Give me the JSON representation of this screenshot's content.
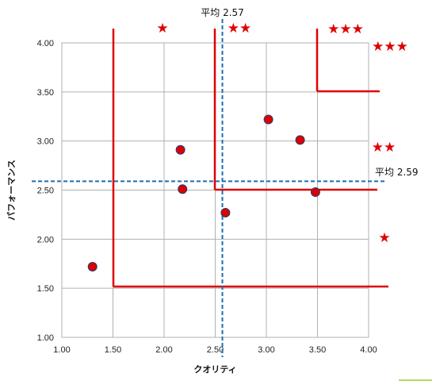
{
  "chart_data": {
    "type": "scatter",
    "xlabel": "クオリティ",
    "ylabel": "パフォーマンス",
    "xlim": [
      1.0,
      4.0
    ],
    "ylim": [
      1.0,
      4.0
    ],
    "x_ticks": [
      "1.00",
      "1.50",
      "2.00",
      "2.50",
      "3.00",
      "3.50",
      "4.00"
    ],
    "y_ticks": [
      "1.00",
      "1.50",
      "2.00",
      "2.50",
      "3.00",
      "3.50",
      "4.00"
    ],
    "grid": true,
    "points": [
      {
        "x": 1.3,
        "y": 1.72
      },
      {
        "x": 2.16,
        "y": 2.91
      },
      {
        "x": 2.18,
        "y": 2.51
      },
      {
        "x": 2.6,
        "y": 2.27
      },
      {
        "x": 3.02,
        "y": 3.22
      },
      {
        "x": 3.33,
        "y": 3.01
      },
      {
        "x": 3.48,
        "y": 2.48
      }
    ],
    "point_color": "#dd0000",
    "point_edge_color": "#1f3f7f",
    "avg_x": {
      "value": 2.57,
      "label": "平均 2.57"
    },
    "avg_y": {
      "value": 2.59,
      "label": "平均 2.59"
    },
    "avg_line_color": "#1a6fb0",
    "boundary_color": "#e00000",
    "star_color": "#e00000",
    "star_labels": {
      "top_low_quality": "★",
      "top_mid_quality": "★★",
      "top_high_quality": "★★★",
      "right_high_perf": "★★★",
      "right_mid_perf": "★★",
      "right_low_perf": "★"
    }
  }
}
